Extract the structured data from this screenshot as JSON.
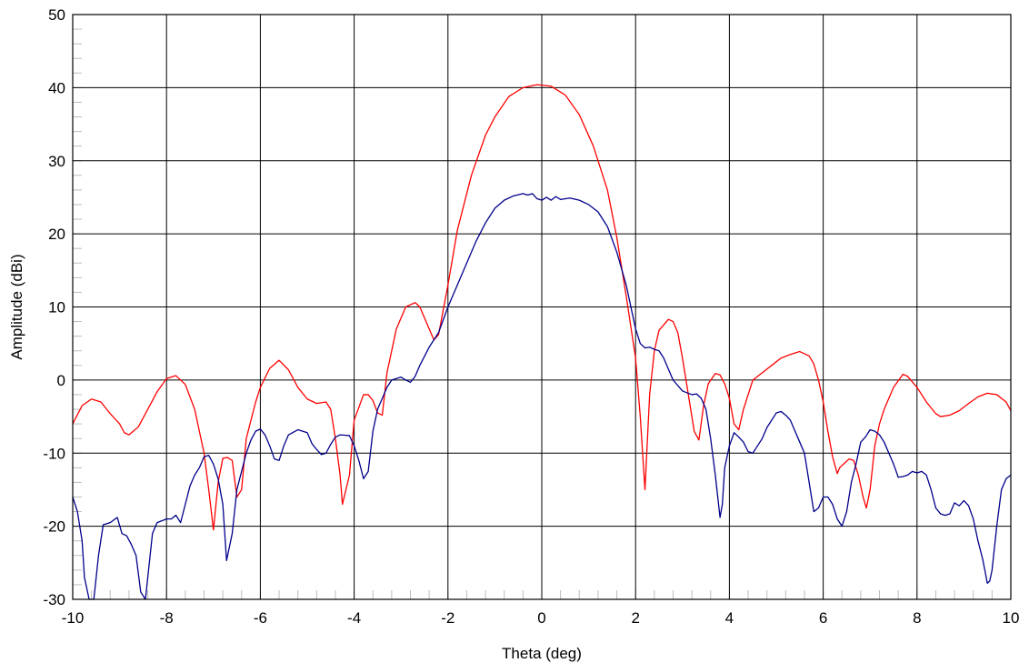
{
  "chart_data": {
    "type": "line",
    "title": "",
    "xlabel": "Theta (deg)",
    "ylabel": "Amplitude (dBi)",
    "xlim": [
      -10,
      10
    ],
    "ylim": [
      -30,
      50
    ],
    "xticks": [
      -10,
      -8,
      -6,
      -4,
      -2,
      0,
      2,
      4,
      6,
      8,
      10
    ],
    "yticks": [
      -30,
      -20,
      -10,
      0,
      10,
      20,
      30,
      40,
      50
    ],
    "grid": true,
    "legend": "none",
    "series": [
      {
        "color": "#ff0000",
        "points": [
          [
            -10.0,
            -6.0
          ],
          [
            -9.8,
            -3.5
          ],
          [
            -9.6,
            -2.6
          ],
          [
            -9.4,
            -3.0
          ],
          [
            -9.2,
            -4.6
          ],
          [
            -9.0,
            -6.0
          ],
          [
            -8.9,
            -7.2
          ],
          [
            -8.8,
            -7.5
          ],
          [
            -8.6,
            -6.4
          ],
          [
            -8.4,
            -4.0
          ],
          [
            -8.2,
            -1.6
          ],
          [
            -8.0,
            0.2
          ],
          [
            -7.8,
            0.6
          ],
          [
            -7.6,
            -0.6
          ],
          [
            -7.4,
            -4.0
          ],
          [
            -7.2,
            -10.0
          ],
          [
            -7.1,
            -15.0
          ],
          [
            -7.0,
            -20.5
          ],
          [
            -6.9,
            -14.0
          ],
          [
            -6.8,
            -10.7
          ],
          [
            -6.7,
            -10.6
          ],
          [
            -6.6,
            -11.0
          ],
          [
            -6.5,
            -16.0
          ],
          [
            -6.4,
            -15.0
          ],
          [
            -6.3,
            -8.0
          ],
          [
            -6.1,
            -3.0
          ],
          [
            -6.0,
            -1.0
          ],
          [
            -5.8,
            1.6
          ],
          [
            -5.6,
            2.7
          ],
          [
            -5.4,
            1.4
          ],
          [
            -5.2,
            -1.0
          ],
          [
            -5.0,
            -2.6
          ],
          [
            -4.8,
            -3.2
          ],
          [
            -4.6,
            -3.0
          ],
          [
            -4.5,
            -4.0
          ],
          [
            -4.4,
            -8.0
          ],
          [
            -4.3,
            -13.0
          ],
          [
            -4.25,
            -17.0
          ],
          [
            -4.1,
            -13.0
          ],
          [
            -4.0,
            -5.5
          ],
          [
            -3.8,
            -2.0
          ],
          [
            -3.7,
            -2.0
          ],
          [
            -3.6,
            -2.8
          ],
          [
            -3.5,
            -4.5
          ],
          [
            -3.4,
            -4.8
          ],
          [
            -3.3,
            1.0
          ],
          [
            -3.1,
            7.0
          ],
          [
            -2.9,
            10.0
          ],
          [
            -2.7,
            10.6
          ],
          [
            -2.6,
            10.0
          ],
          [
            -2.4,
            7.0
          ],
          [
            -2.3,
            5.5
          ],
          [
            -2.2,
            6.2
          ],
          [
            -2.0,
            13.0
          ],
          [
            -1.8,
            20.5
          ],
          [
            -1.5,
            28.0
          ],
          [
            -1.2,
            33.5
          ],
          [
            -1.0,
            36.0
          ],
          [
            -0.7,
            38.8
          ],
          [
            -0.4,
            40.0
          ],
          [
            -0.1,
            40.4
          ],
          [
            0.2,
            40.2
          ],
          [
            0.5,
            39.0
          ],
          [
            0.8,
            36.3
          ],
          [
            1.1,
            32.0
          ],
          [
            1.4,
            26.0
          ],
          [
            1.6,
            19.5
          ],
          [
            1.8,
            11.5
          ],
          [
            2.0,
            3.0
          ],
          [
            2.1,
            -5.0
          ],
          [
            2.2,
            -15.0
          ],
          [
            2.3,
            -2.0
          ],
          [
            2.4,
            4.0
          ],
          [
            2.5,
            6.8
          ],
          [
            2.7,
            8.3
          ],
          [
            2.8,
            8.0
          ],
          [
            2.9,
            6.5
          ],
          [
            3.0,
            3.0
          ],
          [
            3.1,
            -1.0
          ],
          [
            3.25,
            -7.0
          ],
          [
            3.35,
            -8.2
          ],
          [
            3.45,
            -3.5
          ],
          [
            3.55,
            -0.5
          ],
          [
            3.7,
            0.9
          ],
          [
            3.8,
            0.7
          ],
          [
            3.9,
            -0.5
          ],
          [
            4.0,
            -2.5
          ],
          [
            4.1,
            -6.0
          ],
          [
            4.2,
            -6.8
          ],
          [
            4.3,
            -4.0
          ],
          [
            4.4,
            -2.0
          ],
          [
            4.5,
            0.0
          ],
          [
            4.7,
            1.0
          ],
          [
            4.9,
            2.0
          ],
          [
            5.1,
            3.0
          ],
          [
            5.3,
            3.5
          ],
          [
            5.5,
            3.9
          ],
          [
            5.7,
            3.3
          ],
          [
            5.8,
            2.2
          ],
          [
            5.9,
            0.0
          ],
          [
            6.0,
            -3.0
          ],
          [
            6.1,
            -7.0
          ],
          [
            6.2,
            -10.5
          ],
          [
            6.3,
            -12.8
          ],
          [
            6.35,
            -12.0
          ],
          [
            6.45,
            -11.4
          ],
          [
            6.55,
            -10.8
          ],
          [
            6.65,
            -11.0
          ],
          [
            6.75,
            -13.0
          ],
          [
            6.85,
            -16.0
          ],
          [
            6.92,
            -17.5
          ],
          [
            7.0,
            -15.0
          ],
          [
            7.1,
            -9.0
          ],
          [
            7.2,
            -6.0
          ],
          [
            7.3,
            -4.0
          ],
          [
            7.5,
            -1.0
          ],
          [
            7.7,
            0.8
          ],
          [
            7.8,
            0.5
          ],
          [
            8.0,
            -1.0
          ],
          [
            8.2,
            -3.0
          ],
          [
            8.4,
            -4.6
          ],
          [
            8.5,
            -5.0
          ],
          [
            8.7,
            -4.8
          ],
          [
            8.9,
            -4.2
          ],
          [
            9.1,
            -3.2
          ],
          [
            9.3,
            -2.3
          ],
          [
            9.5,
            -1.8
          ],
          [
            9.7,
            -2.0
          ],
          [
            9.9,
            -3.0
          ],
          [
            10.0,
            -4.2
          ]
        ]
      },
      {
        "color": "#00008b",
        "points": [
          [
            -10.0,
            -16.0
          ],
          [
            -9.9,
            -18.0
          ],
          [
            -9.8,
            -22.0
          ],
          [
            -9.75,
            -27.0
          ],
          [
            -9.65,
            -30.0
          ],
          [
            -9.55,
            -30.0
          ],
          [
            -9.45,
            -24.0
          ],
          [
            -9.35,
            -19.8
          ],
          [
            -9.2,
            -19.5
          ],
          [
            -9.05,
            -18.8
          ],
          [
            -8.95,
            -21.0
          ],
          [
            -8.85,
            -21.3
          ],
          [
            -8.75,
            -22.5
          ],
          [
            -8.65,
            -24.0
          ],
          [
            -8.55,
            -29.0
          ],
          [
            -8.45,
            -30.0
          ],
          [
            -8.3,
            -21.0
          ],
          [
            -8.2,
            -19.5
          ],
          [
            -8.0,
            -19.0
          ],
          [
            -7.9,
            -19.0
          ],
          [
            -7.8,
            -18.5
          ],
          [
            -7.7,
            -19.5
          ],
          [
            -7.6,
            -17.0
          ],
          [
            -7.5,
            -14.5
          ],
          [
            -7.4,
            -13.0
          ],
          [
            -7.3,
            -12.0
          ],
          [
            -7.2,
            -10.5
          ],
          [
            -7.1,
            -10.3
          ],
          [
            -7.0,
            -11.5
          ],
          [
            -6.9,
            -13.5
          ],
          [
            -6.8,
            -17.0
          ],
          [
            -6.72,
            -24.7
          ],
          [
            -6.6,
            -21.0
          ],
          [
            -6.5,
            -15.0
          ],
          [
            -6.4,
            -12.5
          ],
          [
            -6.3,
            -10.0
          ],
          [
            -6.2,
            -8.2
          ],
          [
            -6.1,
            -7.0
          ],
          [
            -6.0,
            -6.7
          ],
          [
            -5.9,
            -7.5
          ],
          [
            -5.8,
            -9.0
          ],
          [
            -5.7,
            -10.8
          ],
          [
            -5.6,
            -11.0
          ],
          [
            -5.5,
            -9.0
          ],
          [
            -5.4,
            -7.5
          ],
          [
            -5.2,
            -6.8
          ],
          [
            -5.0,
            -7.2
          ],
          [
            -4.9,
            -8.7
          ],
          [
            -4.8,
            -9.5
          ],
          [
            -4.7,
            -10.2
          ],
          [
            -4.6,
            -10.0
          ],
          [
            -4.5,
            -8.8
          ],
          [
            -4.4,
            -7.8
          ],
          [
            -4.3,
            -7.5
          ],
          [
            -4.1,
            -7.6
          ],
          [
            -4.0,
            -9.0
          ],
          [
            -3.9,
            -11.0
          ],
          [
            -3.8,
            -13.5
          ],
          [
            -3.7,
            -12.5
          ],
          [
            -3.6,
            -7.0
          ],
          [
            -3.5,
            -4.0
          ],
          [
            -3.4,
            -2.5
          ],
          [
            -3.3,
            -1.0
          ],
          [
            -3.2,
            0.0
          ],
          [
            -3.0,
            0.4
          ],
          [
            -2.9,
            0.0
          ],
          [
            -2.8,
            -0.3
          ],
          [
            -2.7,
            0.5
          ],
          [
            -2.6,
            2.0
          ],
          [
            -2.4,
            4.5
          ],
          [
            -2.2,
            6.5
          ],
          [
            -2.0,
            10.0
          ],
          [
            -1.8,
            13.0
          ],
          [
            -1.6,
            16.0
          ],
          [
            -1.4,
            19.0
          ],
          [
            -1.2,
            21.5
          ],
          [
            -1.0,
            23.5
          ],
          [
            -0.8,
            24.6
          ],
          [
            -0.6,
            25.2
          ],
          [
            -0.4,
            25.5
          ],
          [
            -0.3,
            25.3
          ],
          [
            -0.2,
            25.5
          ],
          [
            -0.1,
            24.8
          ],
          [
            0.0,
            24.6
          ],
          [
            0.1,
            25.0
          ],
          [
            0.2,
            24.6
          ],
          [
            0.3,
            25.1
          ],
          [
            0.4,
            24.7
          ],
          [
            0.6,
            24.9
          ],
          [
            0.8,
            24.6
          ],
          [
            1.0,
            24.0
          ],
          [
            1.2,
            23.0
          ],
          [
            1.4,
            21.0
          ],
          [
            1.6,
            17.5
          ],
          [
            1.8,
            13.0
          ],
          [
            2.0,
            7.0
          ],
          [
            2.1,
            5.0
          ],
          [
            2.2,
            4.4
          ],
          [
            2.3,
            4.5
          ],
          [
            2.4,
            4.2
          ],
          [
            2.5,
            4.0
          ],
          [
            2.6,
            3.0
          ],
          [
            2.7,
            1.5
          ],
          [
            2.8,
            0.0
          ],
          [
            3.0,
            -1.5
          ],
          [
            3.2,
            -2.0
          ],
          [
            3.3,
            -1.9
          ],
          [
            3.4,
            -2.5
          ],
          [
            3.5,
            -4.0
          ],
          [
            3.6,
            -8.0
          ],
          [
            3.7,
            -13.0
          ],
          [
            3.8,
            -18.8
          ],
          [
            3.85,
            -17.0
          ],
          [
            3.9,
            -12.0
          ],
          [
            4.0,
            -9.0
          ],
          [
            4.1,
            -7.2
          ],
          [
            4.2,
            -7.8
          ],
          [
            4.3,
            -8.5
          ],
          [
            4.4,
            -9.8
          ],
          [
            4.5,
            -10.0
          ],
          [
            4.6,
            -9.0
          ],
          [
            4.7,
            -8.0
          ],
          [
            4.8,
            -6.5
          ],
          [
            5.0,
            -4.5
          ],
          [
            5.1,
            -4.3
          ],
          [
            5.2,
            -4.8
          ],
          [
            5.3,
            -5.5
          ],
          [
            5.4,
            -7.0
          ],
          [
            5.5,
            -8.5
          ],
          [
            5.6,
            -10.0
          ],
          [
            5.7,
            -14.0
          ],
          [
            5.8,
            -18.0
          ],
          [
            5.9,
            -17.5
          ],
          [
            6.0,
            -16.0
          ],
          [
            6.1,
            -16.0
          ],
          [
            6.2,
            -17.0
          ],
          [
            6.3,
            -19.0
          ],
          [
            6.4,
            -20.0
          ],
          [
            6.5,
            -18.0
          ],
          [
            6.6,
            -14.0
          ],
          [
            6.7,
            -11.5
          ],
          [
            6.8,
            -8.5
          ],
          [
            6.9,
            -7.8
          ],
          [
            7.0,
            -6.8
          ],
          [
            7.1,
            -7.0
          ],
          [
            7.2,
            -7.5
          ],
          [
            7.3,
            -8.5
          ],
          [
            7.4,
            -10.0
          ],
          [
            7.5,
            -11.5
          ],
          [
            7.6,
            -13.3
          ],
          [
            7.7,
            -13.2
          ],
          [
            7.8,
            -13.0
          ],
          [
            7.9,
            -12.5
          ],
          [
            8.0,
            -12.7
          ],
          [
            8.1,
            -12.5
          ],
          [
            8.2,
            -13.0
          ],
          [
            8.3,
            -15.0
          ],
          [
            8.4,
            -17.5
          ],
          [
            8.5,
            -18.3
          ],
          [
            8.6,
            -18.5
          ],
          [
            8.7,
            -18.3
          ],
          [
            8.8,
            -16.8
          ],
          [
            8.9,
            -17.2
          ],
          [
            9.0,
            -16.5
          ],
          [
            9.1,
            -17.2
          ],
          [
            9.2,
            -19.0
          ],
          [
            9.3,
            -22.0
          ],
          [
            9.4,
            -24.5
          ],
          [
            9.5,
            -27.8
          ],
          [
            9.55,
            -27.5
          ],
          [
            9.6,
            -26.0
          ],
          [
            9.7,
            -20.0
          ],
          [
            9.8,
            -15.0
          ],
          [
            9.9,
            -13.5
          ],
          [
            10.0,
            -13.0
          ]
        ]
      }
    ]
  }
}
